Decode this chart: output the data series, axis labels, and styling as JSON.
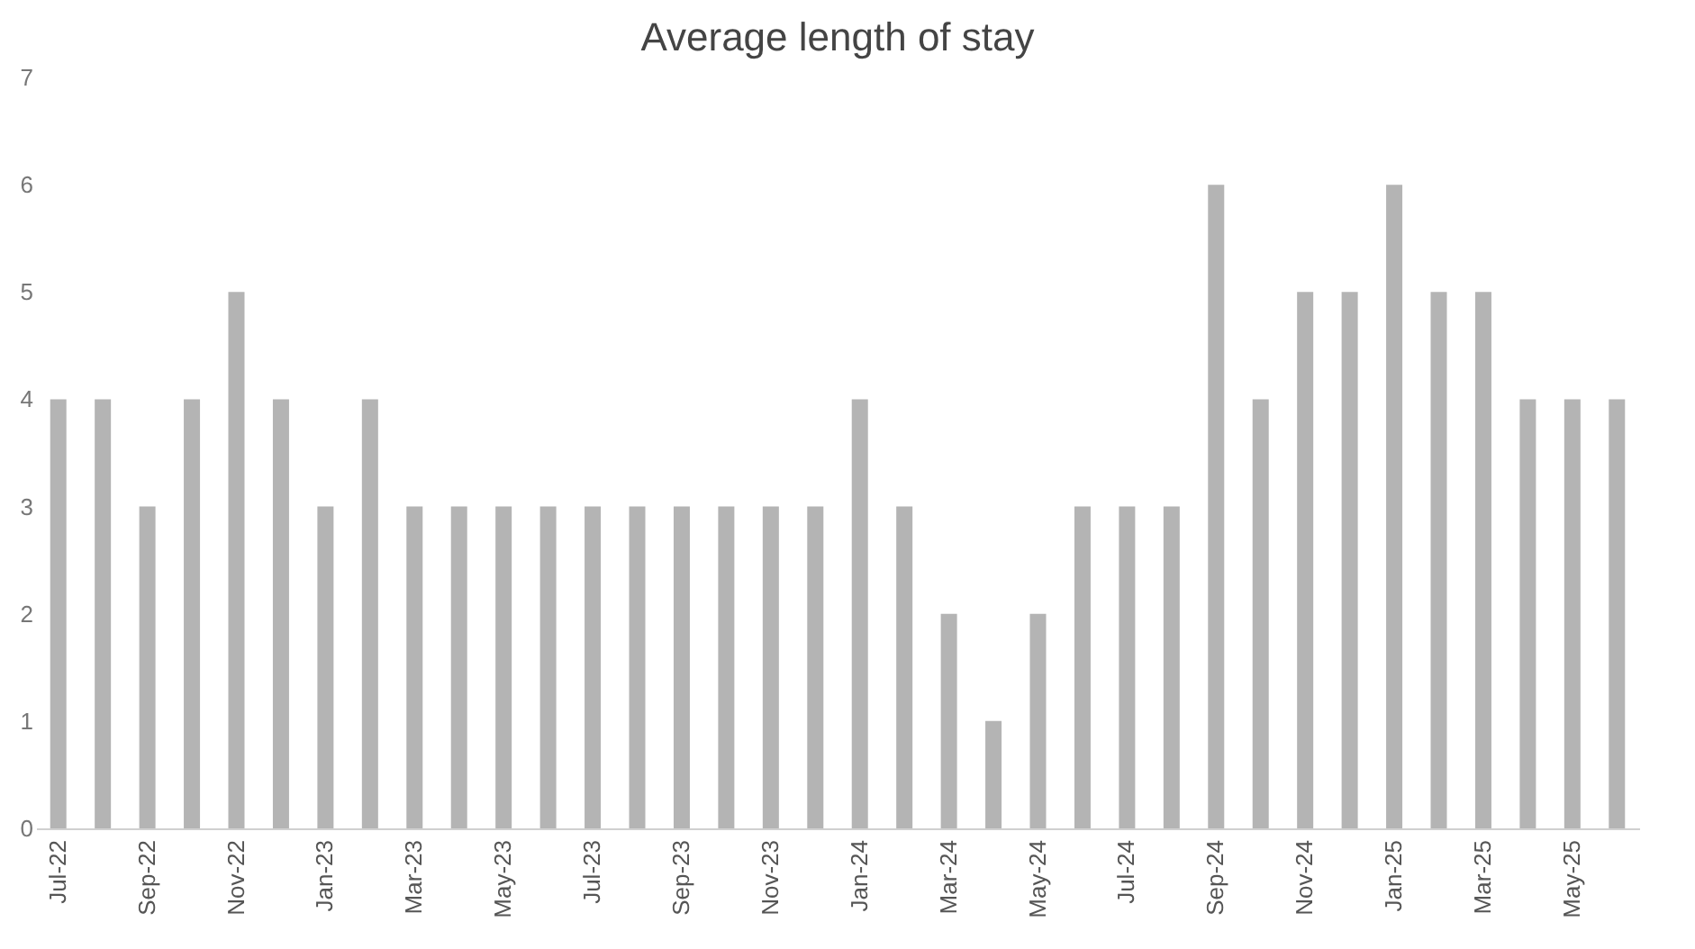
{
  "chart_data": {
    "type": "bar",
    "title": "Average length of stay",
    "categories": [
      "Jul-22",
      null,
      "Sep-22",
      null,
      "Nov-22",
      null,
      "Jan-23",
      null,
      "Mar-23",
      null,
      "May-23",
      null,
      "Jul-23",
      null,
      "Sep-23",
      null,
      "Nov-23",
      null,
      "Jan-24",
      null,
      "Mar-24",
      null,
      "May-24",
      null,
      "Jul-24",
      null,
      "Sep-24",
      null,
      "Nov-24",
      null,
      "Jan-25",
      null,
      "Mar-25",
      null,
      "May-25",
      null
    ],
    "values": [
      4,
      4,
      3,
      4,
      5,
      4,
      3,
      4,
      3,
      3,
      3,
      3,
      3,
      3,
      3,
      3,
      3,
      3,
      4,
      3,
      2,
      1,
      2,
      3,
      3,
      3,
      6,
      4,
      5,
      5,
      6,
      5,
      5,
      4,
      4,
      4
    ],
    "color": "#b4b4b4",
    "ylim": [
      0,
      7
    ],
    "yticks": [
      0,
      1,
      2,
      3,
      4,
      5,
      6,
      7
    ],
    "grid": false
  }
}
